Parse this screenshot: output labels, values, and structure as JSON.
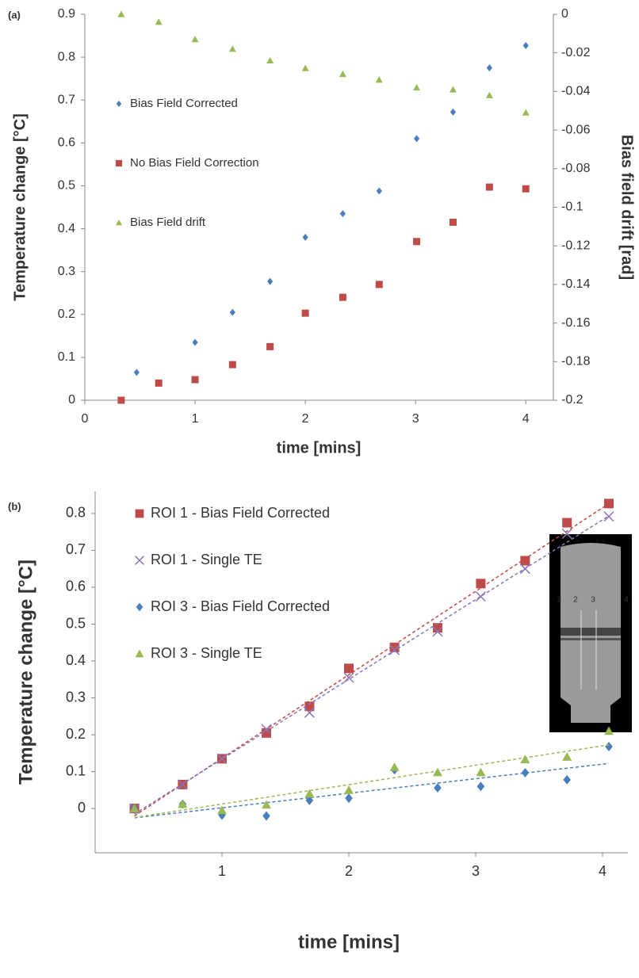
{
  "chart_data": [
    {
      "type": "scatter",
      "panel_label": "(a)",
      "x_label": "time [mins]",
      "y_label": "Temperature change [°C]",
      "y2_label": "Bias field drift [rad]",
      "xlim": [
        0,
        4.25
      ],
      "xticks": [
        0,
        1,
        2,
        3,
        4
      ],
      "ylim": [
        0,
        0.9
      ],
      "yticks": [
        0,
        0.1,
        0.2,
        0.3,
        0.4,
        0.5,
        0.6,
        0.7,
        0.8,
        0.9
      ],
      "y2lim": [
        -0.2,
        0
      ],
      "y2ticks": [
        -0.2,
        -0.18,
        -0.16,
        -0.14,
        -0.12,
        -0.1,
        -0.08,
        -0.06,
        -0.04,
        -0.02,
        0
      ],
      "legend": "left",
      "trendline": false,
      "series": [
        {
          "name": "Bias Field Corrected",
          "color": "#4a7ebb",
          "marker": "diamond",
          "x": [
            0.47,
            1.0,
            1.34,
            1.68,
            2.0,
            2.34,
            2.67,
            3.01,
            3.34,
            3.67,
            4.0
          ],
          "values": [
            0.065,
            0.135,
            0.205,
            0.277,
            0.38,
            0.435,
            0.488,
            0.61,
            0.672,
            0.775,
            0.827
          ]
        },
        {
          "name": "No Bias Field Correction",
          "color": "#be4b48",
          "marker": "square",
          "x": [
            0.33,
            0.67,
            1.0,
            1.34,
            1.68,
            2.0,
            2.34,
            2.67,
            3.01,
            3.34,
            3.67,
            4.0
          ],
          "values": [
            0,
            0.04,
            0.048,
            0.083,
            0.125,
            0.203,
            0.24,
            0.27,
            0.37,
            0.415,
            0.497,
            0.493
          ]
        },
        {
          "name": "Bias Field drift",
          "color": "#98b954",
          "marker": "triangle",
          "axis": "y2",
          "x": [
            0.33,
            0.67,
            1.0,
            1.34,
            1.68,
            2.0,
            2.34,
            2.67,
            3.01,
            3.34,
            3.67,
            4.0
          ],
          "values": [
            0,
            -0.004,
            -0.013,
            -0.018,
            -0.024,
            -0.028,
            -0.031,
            -0.034,
            -0.038,
            -0.039,
            -0.042,
            -0.051
          ]
        }
      ]
    },
    {
      "type": "scatter",
      "panel_label": "(b)",
      "x_label": "time [mins]",
      "y_label": "Temperature change [°C]",
      "xlim": [
        0,
        4.2
      ],
      "xticks": [
        1,
        2,
        3,
        4
      ],
      "ylim": [
        -0.12,
        0.86
      ],
      "yticks": [
        0,
        0.1,
        0.2,
        0.3,
        0.4,
        0.5,
        0.6,
        0.7,
        0.8
      ],
      "legend": "upper left",
      "trendline": true,
      "inset_labels": [
        "1",
        "2",
        "3",
        "4"
      ],
      "series": [
        {
          "name": "ROI 1 - Bias Field Corrected",
          "color": "#be4b48",
          "marker": "square",
          "x": [
            0.31,
            0.69,
            1.0,
            1.35,
            1.69,
            2.0,
            2.36,
            2.7,
            3.04,
            3.39,
            3.72,
            4.05
          ],
          "values": [
            0,
            0.065,
            0.135,
            0.205,
            0.277,
            0.38,
            0.437,
            0.49,
            0.61,
            0.672,
            0.775,
            0.827
          ]
        },
        {
          "name": "ROI 1 - Single TE",
          "color": "#8a74b8",
          "marker": "x",
          "x": [
            0.31,
            0.69,
            1.0,
            1.35,
            1.69,
            2.0,
            2.36,
            2.7,
            3.04,
            3.39,
            3.72,
            4.05
          ],
          "values": [
            0,
            0.065,
            0.135,
            0.215,
            0.26,
            0.355,
            0.43,
            0.48,
            0.575,
            0.65,
            0.745,
            0.792
          ]
        },
        {
          "name": "ROI 3 - Bias Field Corrected",
          "color": "#4a7ebb",
          "marker": "diamond",
          "x": [
            0.31,
            0.69,
            1.0,
            1.35,
            1.69,
            2.0,
            2.36,
            2.7,
            3.04,
            3.39,
            3.72,
            4.05
          ],
          "values": [
            0,
            0.012,
            -0.018,
            -0.02,
            0.022,
            0.028,
            0.105,
            0.056,
            0.06,
            0.097,
            0.078,
            0.168
          ]
        },
        {
          "name": "ROI 3 - Single TE",
          "color": "#98b954",
          "marker": "triangle",
          "x": [
            0.31,
            0.69,
            1.0,
            1.35,
            1.69,
            2.0,
            2.36,
            2.7,
            3.04,
            3.39,
            3.72,
            4.05
          ],
          "values": [
            0,
            0.012,
            -0.005,
            0.01,
            0.04,
            0.05,
            0.112,
            0.098,
            0.098,
            0.133,
            0.14,
            0.21
          ]
        }
      ]
    }
  ]
}
